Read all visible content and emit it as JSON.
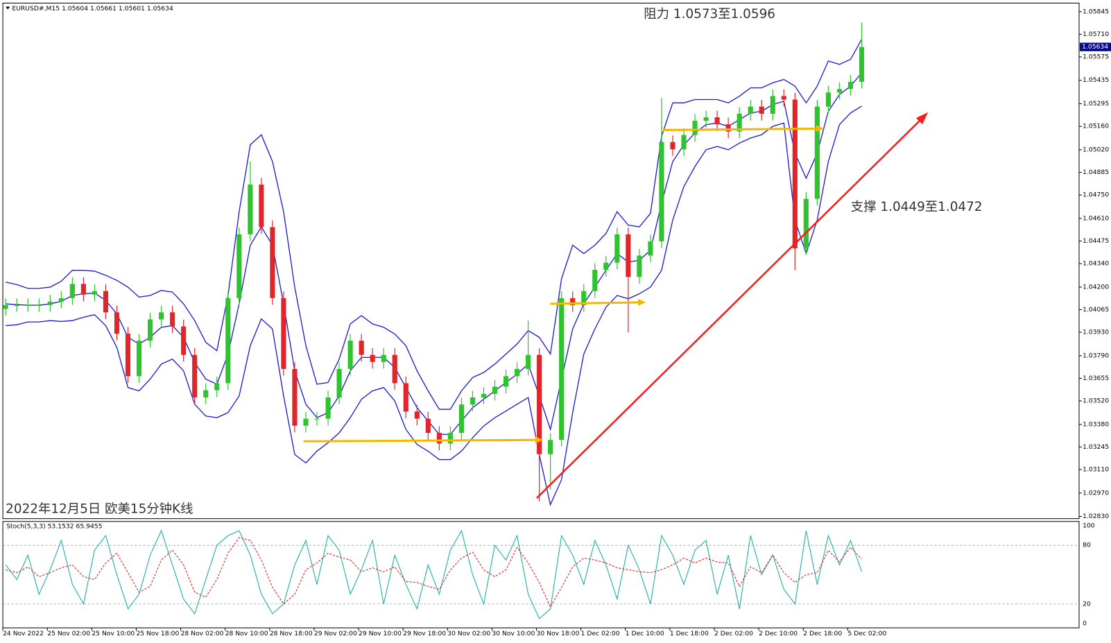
{
  "chart_data": {
    "type": "candlestick",
    "title": "2022年12月5日 欧美15分钟K线",
    "header": "EURUSD#,M15  1.05604 1.05661 1.05601 1.05634",
    "annotations": [
      "阻力 1.0573至1.0596",
      "支撑 1.0449至1.0472"
    ],
    "categories": [
      "24 Nov 2022",
      null,
      null,
      null,
      "25 Nov 02:00",
      null,
      null,
      null,
      "25 Nov 10:00",
      null,
      null,
      null,
      "25 Nov 18:00",
      null,
      null,
      null,
      "28 Nov 02:00",
      null,
      null,
      null,
      "28 Nov 10:00",
      null,
      null,
      null,
      "28 Nov 18:00",
      null,
      null,
      null,
      "29 Nov 02:00",
      null,
      null,
      null,
      "29 Nov 10:00",
      null,
      null,
      null,
      "29 Nov 18:00",
      null,
      null,
      null,
      "30 Nov 02:00",
      null,
      null,
      null,
      "30 Nov 10:00",
      null,
      null,
      null,
      "30 Nov 18:00",
      null,
      null,
      null,
      "1 Dec 02:00",
      null,
      null,
      null,
      "1 Dec 10:00",
      null,
      null,
      null,
      "1 Dec 18:00",
      null,
      null,
      null,
      "2 Dec 02:00",
      null,
      null,
      null,
      "2 Dec 10:00",
      null,
      null,
      null,
      "2 Dec 18:00",
      null,
      null,
      null,
      "5 Dec 02:00",
      null
    ],
    "open": [
      1.0407,
      1.04092,
      1.04092,
      1.04092,
      1.04092,
      1.04113,
      1.04134,
      1.04219,
      1.04155,
      1.04176,
      1.04049,
      1.03922,
      1.03668,
      1.0388,
      1.04007,
      1.04049,
      1.03965,
      1.03795,
      1.03541,
      1.03584,
      1.03626,
      1.04134,
      1.04515,
      1.04812,
      1.04558,
      1.04134,
      1.03711,
      1.03372,
      1.03414,
      1.03414,
      1.03541,
      1.03711,
      1.0388,
      1.03795,
      1.03753,
      1.03795,
      1.03626,
      1.03457,
      1.03414,
      1.03329,
      1.03266,
      1.03329,
      1.03499,
      1.03541,
      1.03562,
      1.03605,
      1.03668,
      1.03711,
      1.03795,
      1.03202,
      1.03287,
      1.04134,
      1.04092,
      1.04176,
      1.04303,
      1.04346,
      1.04515,
      1.04261,
      1.04388,
      1.04473,
      1.05066,
      1.05023,
      1.05108,
      1.05193,
      1.05214,
      1.05172,
      1.05129,
      1.05235,
      1.05278,
      1.05235,
      1.05341,
      1.0532,
      1.04431,
      1.04727,
      1.05278,
      1.05362,
      1.05383,
      1.05426
    ],
    "high": [
      1.04132,
      1.04132,
      1.04132,
      1.04132,
      1.04153,
      1.04174,
      1.04259,
      1.04259,
      1.04216,
      1.04216,
      1.04089,
      1.03962,
      1.0392,
      1.04047,
      1.04089,
      1.04089,
      1.04005,
      1.03835,
      1.03624,
      1.03666,
      1.04174,
      1.04555,
      1.0495,
      1.04852,
      1.04598,
      1.04174,
      1.03751,
      1.03454,
      1.03454,
      1.03581,
      1.03751,
      1.0392,
      1.0392,
      1.03835,
      1.03835,
      1.03835,
      1.03666,
      1.03497,
      1.03454,
      1.03369,
      1.03369,
      1.03539,
      1.03581,
      1.03602,
      1.03645,
      1.03708,
      1.03751,
      1.04,
      1.03835,
      1.03327,
      1.04174,
      1.04174,
      1.04216,
      1.04343,
      1.04386,
      1.04555,
      1.04555,
      1.04428,
      1.04513,
      1.0533,
      1.05106,
      1.05148,
      1.05233,
      1.05254,
      1.05254,
      1.05212,
      1.05275,
      1.05318,
      1.05318,
      1.05381,
      1.05381,
      1.0536,
      1.04767,
      1.05318,
      1.05402,
      1.05423,
      1.05466,
      1.0578
    ],
    "low": [
      1.0403,
      1.04052,
      1.04052,
      1.04052,
      1.04052,
      1.04073,
      1.04094,
      1.04115,
      1.04115,
      1.04009,
      1.03882,
      1.03628,
      1.03628,
      1.0384,
      1.03967,
      1.03925,
      1.03755,
      1.03501,
      1.03501,
      1.03544,
      1.03586,
      1.04094,
      1.04475,
      1.04518,
      1.04094,
      1.03671,
      1.03332,
      1.03332,
      1.03374,
      1.03374,
      1.03501,
      1.03671,
      1.03755,
      1.03713,
      1.03713,
      1.03586,
      1.03417,
      1.03374,
      1.03289,
      1.03226,
      1.03226,
      1.03289,
      1.03459,
      1.03501,
      1.03522,
      1.03565,
      1.03628,
      1.03671,
      1.0292,
      1.0299,
      1.03247,
      1.04052,
      1.04052,
      1.04136,
      1.04263,
      1.04306,
      1.0393,
      1.04221,
      1.04348,
      1.04433,
      1.04983,
      1.04983,
      1.05068,
      1.05153,
      1.05132,
      1.05089,
      1.05089,
      1.05195,
      1.05195,
      1.05195,
      1.0528,
      1.043,
      1.04391,
      1.04687,
      1.05238,
      1.05322,
      1.05343,
      1.05386
    ],
    "close": [
      1.04092,
      1.04092,
      1.04092,
      1.04092,
      1.04113,
      1.04134,
      1.04219,
      1.04155,
      1.04176,
      1.04049,
      1.03922,
      1.03668,
      1.0388,
      1.04007,
      1.04049,
      1.03965,
      1.03795,
      1.03541,
      1.03584,
      1.03626,
      1.04134,
      1.04515,
      1.04812,
      1.04558,
      1.04134,
      1.03711,
      1.03372,
      1.03414,
      1.03414,
      1.03541,
      1.03711,
      1.0388,
      1.03795,
      1.03753,
      1.03795,
      1.03626,
      1.03457,
      1.03414,
      1.03329,
      1.03266,
      1.03329,
      1.03499,
      1.03541,
      1.03562,
      1.03605,
      1.03668,
      1.03711,
      1.03795,
      1.03202,
      1.03287,
      1.04134,
      1.04092,
      1.04176,
      1.04303,
      1.04346,
      1.04515,
      1.04261,
      1.04388,
      1.04473,
      1.05066,
      1.05023,
      1.05108,
      1.05193,
      1.05214,
      1.05172,
      1.05129,
      1.05235,
      1.05278,
      1.05235,
      1.05341,
      1.0532,
      1.04431,
      1.04727,
      1.05278,
      1.05362,
      1.05383,
      1.05426,
      1.05634
    ],
    "up_color": "#2fc42f",
    "down_color": "#e0262a",
    "ylim": [
      1.02817,
      1.05896
    ],
    "yticks": [
      1.05845,
      {
        "value": 1.0571,
        "label": "1.05710"
      },
      1.05575,
      1.05435,
      1.05295,
      {
        "value": 1.0516,
        "label": "1.05160"
      },
      {
        "value": 1.0502,
        "label": "1.05020"
      },
      1.04885,
      {
        "value": 1.0475,
        "label": "1.04750"
      },
      {
        "value": 1.0461,
        "label": "1.04610"
      },
      1.04475,
      {
        "value": 1.0434,
        "label": "1.04340"
      },
      {
        "value": 1.042,
        "label": "1.04200"
      },
      1.04065,
      {
        "value": 1.0393,
        "label": "1.03930"
      },
      {
        "value": 1.0379,
        "label": "1.03790"
      },
      1.03655,
      {
        "value": 1.0352,
        "label": "1.03520"
      },
      {
        "value": 1.0338,
        "label": "1.03380"
      },
      1.03245,
      {
        "value": 1.0311,
        "label": "1.03110"
      },
      {
        "value": 1.0297,
        "label": "1.02970"
      },
      {
        "value": 1.0283,
        "label": "1.02830"
      }
    ],
    "current_price": 1.05634,
    "bands": {
      "color": "#1a1ad6",
      "upper": [
        1.0423,
        1.04215,
        1.04192,
        1.04192,
        1.042,
        1.04235,
        1.043,
        1.043,
        1.04295,
        1.0427,
        1.0424,
        1.042,
        1.0414,
        1.0415,
        1.0418,
        1.0417,
        1.041,
        1.04,
        1.0387,
        1.0382,
        1.0415,
        1.0465,
        1.0505,
        1.0511,
        1.0495,
        1.0465,
        1.042,
        1.0385,
        1.0362,
        1.0363,
        1.0377,
        1.0398,
        1.0403,
        1.0398,
        1.0396,
        1.0392,
        1.0385,
        1.037,
        1.0358,
        1.0347,
        1.0347,
        1.0358,
        1.0366,
        1.0369,
        1.0374,
        1.038,
        1.0386,
        1.0394,
        1.039,
        1.038,
        1.0425,
        1.0445,
        1.044,
        1.0445,
        1.0452,
        1.0465,
        1.0457,
        1.0456,
        1.0464,
        1.051,
        1.053,
        1.053,
        1.0532,
        1.0532,
        1.0532,
        1.053,
        1.0534,
        1.0539,
        1.0539,
        1.0542,
        1.0544,
        1.054,
        1.053,
        1.054,
        1.0555,
        1.0553,
        1.0556,
        1.0568
      ],
      "middle": [
        1.041,
        1.04095,
        1.04092,
        1.04092,
        1.041,
        1.04115,
        1.0415,
        1.0416,
        1.04165,
        1.0412,
        1.0404,
        1.039,
        1.0386,
        1.039,
        1.0396,
        1.0397,
        1.039,
        1.0375,
        1.0365,
        1.0362,
        1.038,
        1.041,
        1.0445,
        1.0456,
        1.0445,
        1.041,
        1.037,
        1.035,
        1.0342,
        1.0345,
        1.0355,
        1.037,
        1.0378,
        1.0378,
        1.0378,
        1.0372,
        1.036,
        1.0348,
        1.034,
        1.0332,
        1.0332,
        1.034,
        1.0348,
        1.0353,
        1.0358,
        1.0363,
        1.0368,
        1.0374,
        1.0355,
        1.0335,
        1.0365,
        1.0395,
        1.041,
        1.042,
        1.043,
        1.044,
        1.0435,
        1.0436,
        1.0442,
        1.047,
        1.0495,
        1.0505,
        1.0512,
        1.0517,
        1.0518,
        1.0516,
        1.052,
        1.0524,
        1.0525,
        1.0529,
        1.0531,
        1.05,
        1.0485,
        1.05,
        1.0525,
        1.0535,
        1.054,
        1.0548
      ],
      "lower": [
        1.0397,
        1.03975,
        1.03992,
        1.03992,
        1.04,
        1.03995,
        1.04,
        1.0402,
        1.04035,
        1.0397,
        1.0384,
        1.036,
        1.0358,
        1.0365,
        1.0374,
        1.0377,
        1.037,
        1.035,
        1.0343,
        1.0342,
        1.0345,
        1.0355,
        1.0385,
        1.0401,
        1.0395,
        1.0355,
        1.032,
        1.0315,
        1.0322,
        1.0327,
        1.0333,
        1.0342,
        1.0353,
        1.0358,
        1.036,
        1.0352,
        1.0335,
        1.0326,
        1.0322,
        1.0317,
        1.0317,
        1.0322,
        1.033,
        1.0337,
        1.0342,
        1.0346,
        1.035,
        1.0354,
        1.032,
        1.029,
        1.0305,
        1.0345,
        1.038,
        1.0395,
        1.0408,
        1.0415,
        1.0413,
        1.0416,
        1.042,
        1.043,
        1.046,
        1.048,
        1.0492,
        1.0502,
        1.0504,
        1.0502,
        1.0506,
        1.0509,
        1.0511,
        1.0516,
        1.0518,
        1.046,
        1.044,
        1.046,
        1.0495,
        1.0517,
        1.0524,
        1.0528
      ]
    },
    "stochastic": {
      "type": "line",
      "title": "Stoch(5,3,3) 53.1532 65.9455",
      "ylim": [
        -4.4,
        104.4
      ],
      "yticks": [
        100,
        80,
        20,
        0
      ],
      "series": [
        {
          "color": "#20b2aa",
          "values": [
            60,
            45,
            70,
            30,
            55,
            85,
            40,
            20,
            75,
            90,
            50,
            15,
            30,
            70,
            95,
            60,
            25,
            10,
            45,
            80,
            90,
            95,
            70,
            30,
            10,
            20,
            60,
            85,
            40,
            90,
            75,
            30,
            55,
            85,
            20,
            70,
            40,
            15,
            60,
            30,
            75,
            95,
            50,
            20,
            80,
            65,
            90,
            30,
            5,
            15,
            90,
            70,
            40,
            85,
            60,
            25,
            80,
            55,
            20,
            90,
            70,
            40,
            75,
            85,
            30,
            70,
            15,
            90,
            50,
            70,
            35,
            20,
            95,
            40,
            90,
            60,
            85,
            53.1532
          ]
        },
        {
          "color": "#e0262a",
          "dashed": true,
          "values": [
            55,
            52,
            58,
            48,
            52,
            57,
            60,
            48,
            45,
            62,
            72,
            52,
            32,
            38,
            65,
            75,
            60,
            32,
            27,
            45,
            72,
            88,
            85,
            65,
            37,
            20,
            30,
            55,
            62,
            72,
            68,
            65,
            53,
            57,
            53,
            58,
            43,
            42,
            38,
            35,
            55,
            67,
            73,
            55,
            48,
            55,
            78,
            62,
            42,
            17,
            37,
            58,
            67,
            65,
            62,
            57,
            55,
            53,
            52,
            55,
            60,
            67,
            62,
            67,
            63,
            62,
            38,
            58,
            52,
            70,
            52,
            42,
            50,
            52,
            75,
            63,
            78,
            65.9455
          ]
        }
      ]
    }
  }
}
